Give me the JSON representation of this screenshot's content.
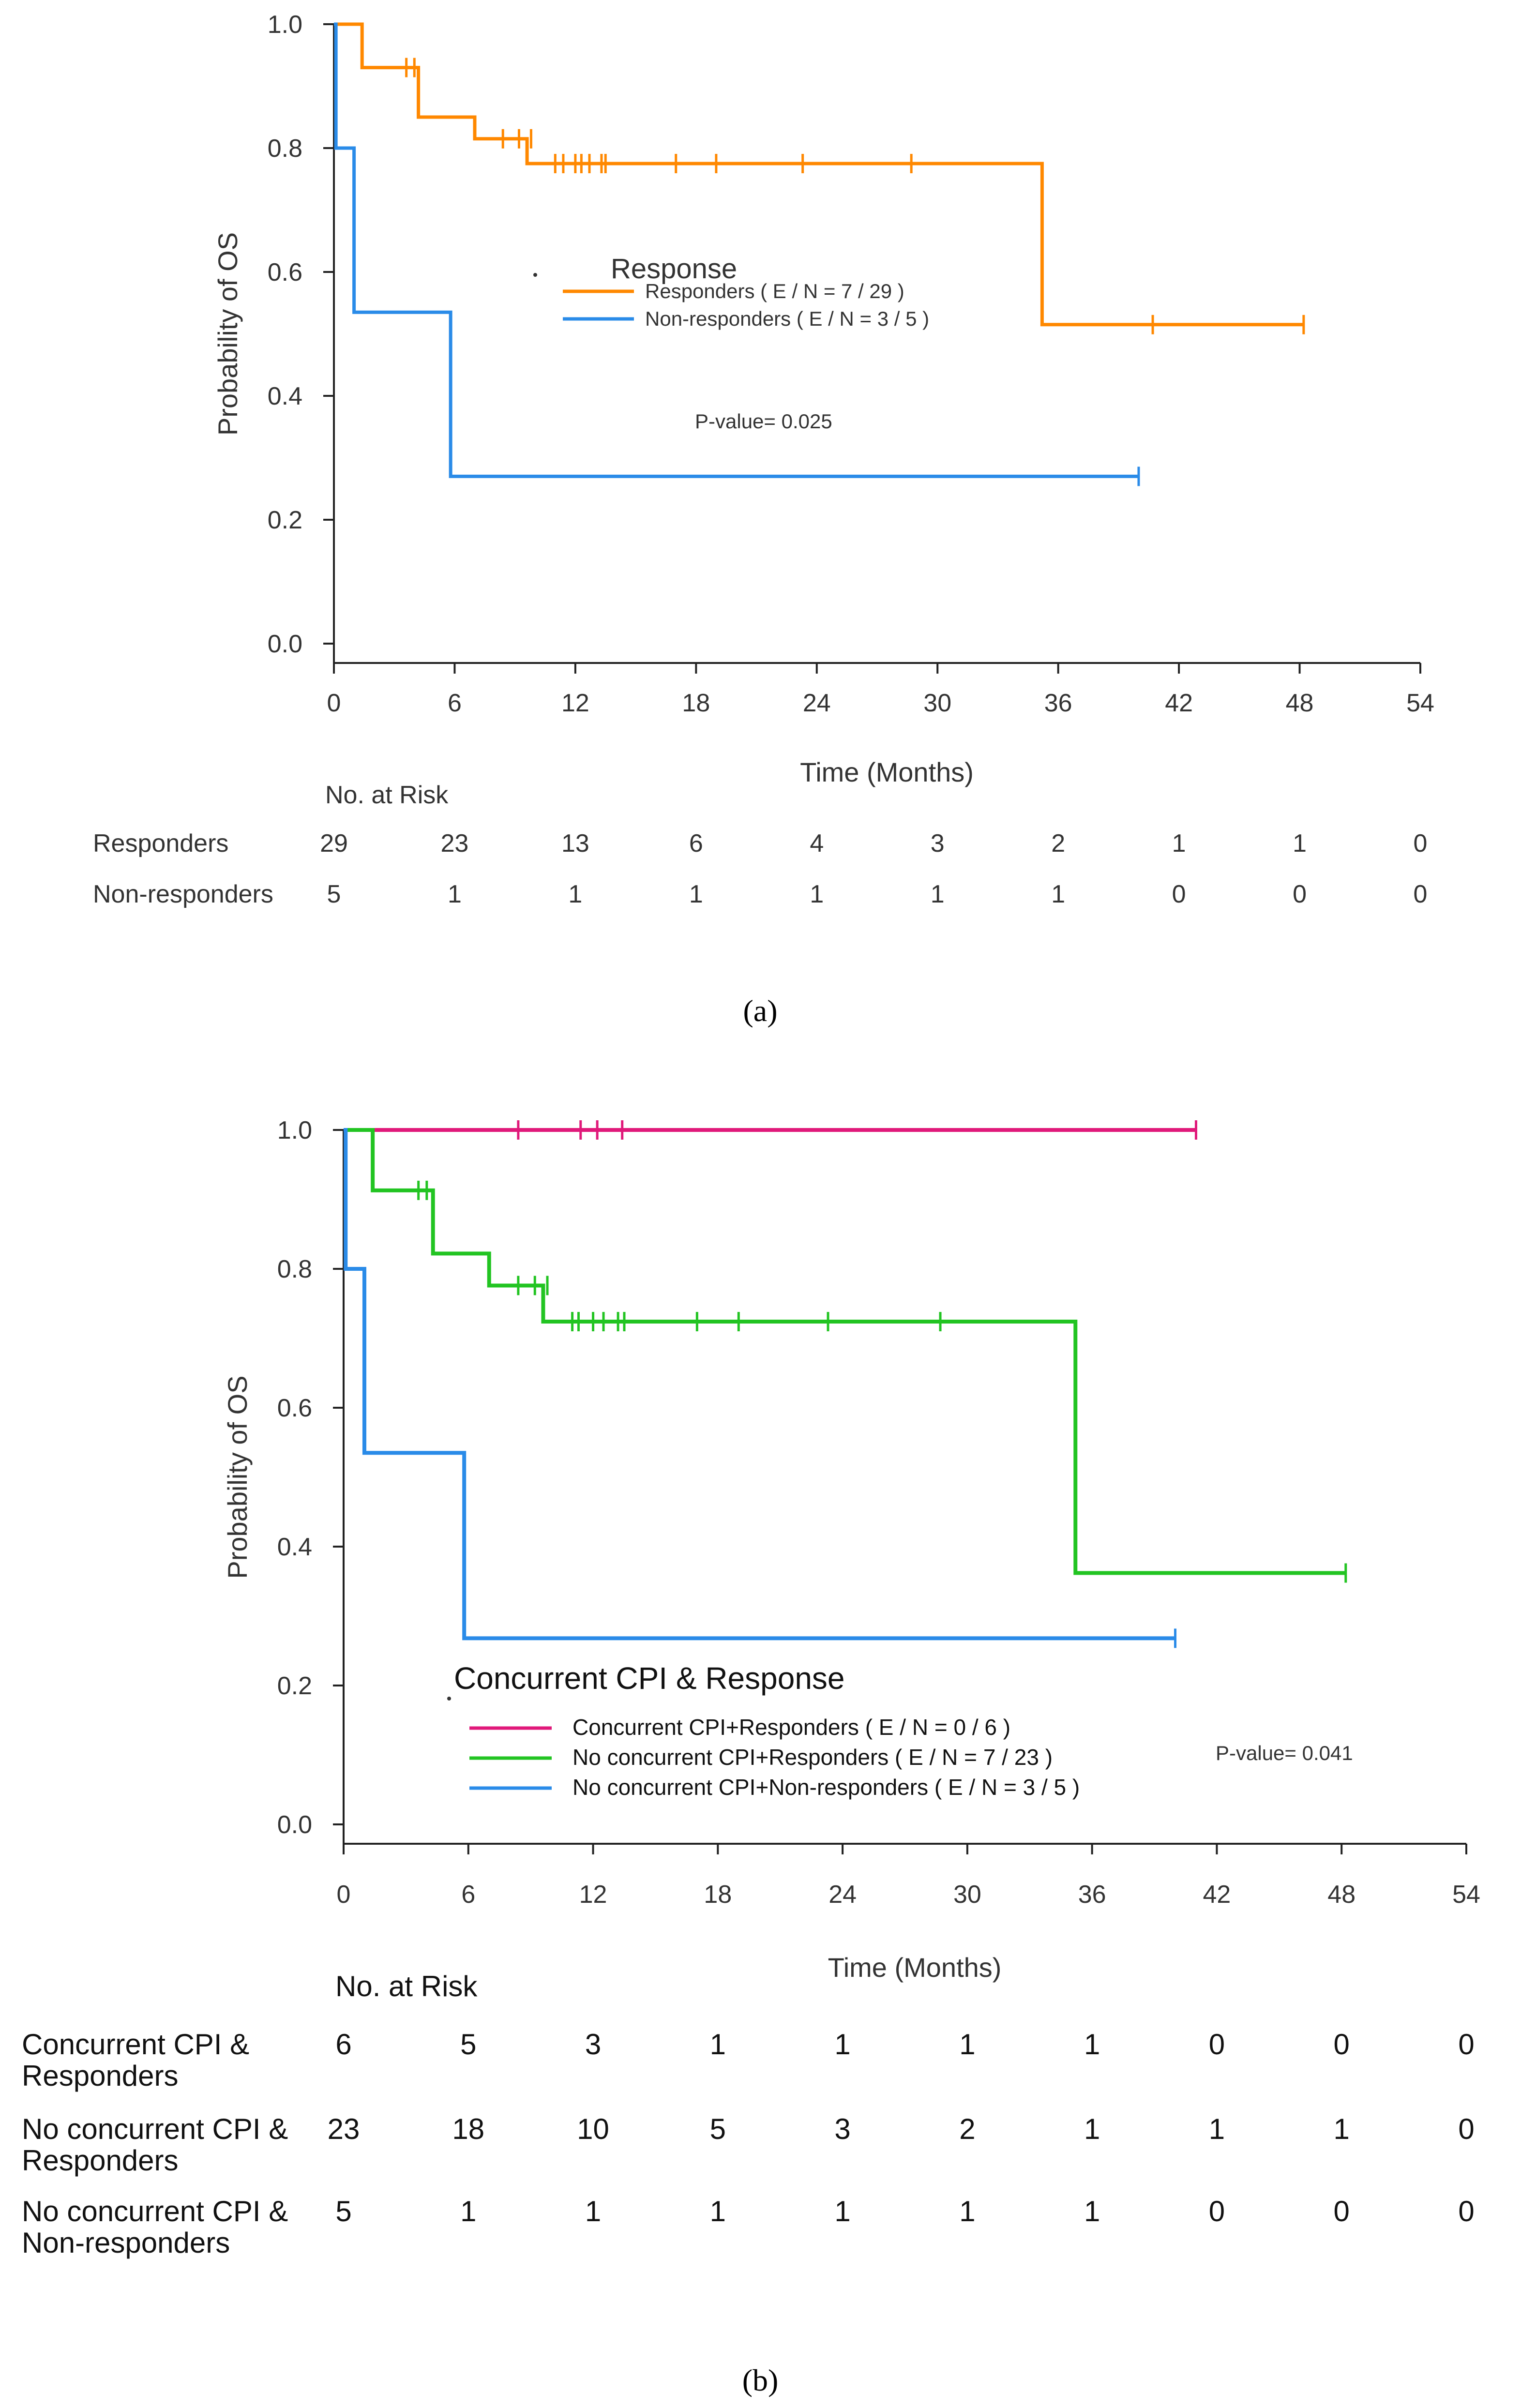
{
  "chart_data": [
    {
      "type": "line",
      "panel_label": "a",
      "caption": "(a)",
      "ylabel": "Probability of OS",
      "xlabel": "Time (Months)",
      "xlim": [
        0,
        54
      ],
      "ylim": [
        0,
        1
      ],
      "x_ticks": [
        "0",
        "6",
        "12",
        "18",
        "24",
        "30",
        "36",
        "42",
        "48",
        "54"
      ],
      "y_ticks": [
        "0.0",
        "0.2",
        "0.4",
        "0.6",
        "0.8",
        "1.0"
      ],
      "legend_title": "Response",
      "legend_marker": ".",
      "p_value": "P-value= 0.025",
      "series": [
        {
          "name": "Responders",
          "legend_label": "Responders ( E / N = 7 / 29 )",
          "color": "#ff8800",
          "steps": [
            [
              0,
              1.0
            ],
            [
              1.4,
              0.93
            ],
            [
              4.2,
              0.85
            ],
            [
              7.0,
              0.815
            ],
            [
              9.6,
              0.775
            ],
            [
              35.2,
              0.515
            ],
            [
              48.2,
              0.515
            ]
          ],
          "censored": [
            [
              3.6,
              0.93
            ],
            [
              4.0,
              0.93
            ],
            [
              8.4,
              0.815
            ],
            [
              9.2,
              0.815
            ],
            [
              9.8,
              0.815
            ],
            [
              11.0,
              0.775
            ],
            [
              11.4,
              0.775
            ],
            [
              12.0,
              0.775
            ],
            [
              12.3,
              0.775
            ],
            [
              12.7,
              0.775
            ],
            [
              13.3,
              0.775
            ],
            [
              13.5,
              0.775
            ],
            [
              17.0,
              0.775
            ],
            [
              19.0,
              0.775
            ],
            [
              23.3,
              0.775
            ],
            [
              28.7,
              0.775
            ],
            [
              40.7,
              0.515
            ],
            [
              48.2,
              0.515
            ]
          ]
        },
        {
          "name": "Non-responders",
          "legend_label": "Non-responders ( E / N = 3 / 5 )",
          "color": "#2a8be8",
          "steps": [
            [
              0,
              1.0
            ],
            [
              0.1,
              0.8
            ],
            [
              1.0,
              0.535
            ],
            [
              5.8,
              0.27
            ],
            [
              40.0,
              0.27
            ]
          ],
          "censored": [
            [
              40.0,
              0.27
            ]
          ]
        }
      ],
      "risk_table": {
        "title": "No. at Risk",
        "rows": [
          {
            "label": "Responders",
            "values": [
              "29",
              "23",
              "13",
              "6",
              "4",
              "3",
              "2",
              "1",
              "1",
              "0"
            ]
          },
          {
            "label": "Non-responders",
            "values": [
              "5",
              "1",
              "1",
              "1",
              "1",
              "1",
              "1",
              "0",
              "0",
              "0"
            ]
          }
        ]
      }
    },
    {
      "type": "line",
      "panel_label": "b",
      "caption": "(b)",
      "ylabel": "Probability of OS",
      "xlabel": "Time (Months)",
      "xlim": [
        0,
        54
      ],
      "ylim": [
        0,
        1
      ],
      "x_ticks": [
        "0",
        "6",
        "12",
        "18",
        "24",
        "30",
        "36",
        "42",
        "48",
        "54"
      ],
      "y_ticks": [
        "0.0",
        "0.2",
        "0.4",
        "0.6",
        "0.8",
        "1.0"
      ],
      "legend_title": "Concurrent CPI & Response",
      "legend_marker": ".",
      "p_value": "P-value= 0.041",
      "series": [
        {
          "name": "Concurrent CPI+Responders",
          "legend_label": "Concurrent CPI+Responders ( E / N = 0 / 6 )",
          "color": "#e0197a",
          "steps": [
            [
              0,
              1.0
            ],
            [
              41.0,
              1.0
            ]
          ],
          "censored": [
            [
              8.4,
              1.0
            ],
            [
              11.4,
              1.0
            ],
            [
              12.2,
              1.0
            ],
            [
              13.4,
              1.0
            ],
            [
              41.0,
              1.0
            ]
          ]
        },
        {
          "name": "No concurrent CPI+Responders",
          "legend_label": "No concurrent CPI+Responders ( E / N = 7 / 23 )",
          "color": "#22c422",
          "steps": [
            [
              0,
              1.0
            ],
            [
              1.4,
              0.913
            ],
            [
              4.3,
              0.822
            ],
            [
              7.0,
              0.776
            ],
            [
              9.6,
              0.724
            ],
            [
              35.2,
              0.362
            ],
            [
              48.2,
              0.362
            ]
          ],
          "censored": [
            [
              3.6,
              0.913
            ],
            [
              4.0,
              0.913
            ],
            [
              8.4,
              0.776
            ],
            [
              9.2,
              0.776
            ],
            [
              9.8,
              0.776
            ],
            [
              11.0,
              0.724
            ],
            [
              11.3,
              0.724
            ],
            [
              12.0,
              0.724
            ],
            [
              12.5,
              0.724
            ],
            [
              13.2,
              0.724
            ],
            [
              13.5,
              0.724
            ],
            [
              17.0,
              0.724
            ],
            [
              19.0,
              0.724
            ],
            [
              23.3,
              0.724
            ],
            [
              28.7,
              0.724
            ],
            [
              48.2,
              0.362
            ]
          ]
        },
        {
          "name": "No concurrent CPI+Non-responders",
          "legend_label": "No concurrent CPI+Non-responders ( E / N = 3 / 5 )",
          "color": "#2a8be8",
          "steps": [
            [
              0,
              1.0
            ],
            [
              0.1,
              0.8
            ],
            [
              1.0,
              0.535
            ],
            [
              5.8,
              0.268
            ],
            [
              40.0,
              0.268
            ]
          ],
          "censored": [
            [
              40.0,
              0.268
            ]
          ]
        }
      ],
      "risk_table": {
        "title": "No. at Risk",
        "rows": [
          {
            "label_lines": [
              "Concurrent CPI &",
              "Responders"
            ],
            "values": [
              "6",
              "5",
              "3",
              "1",
              "1",
              "1",
              "1",
              "0",
              "0",
              "0"
            ]
          },
          {
            "label_lines": [
              "No concurrent CPI &",
              "Responders"
            ],
            "values": [
              "23",
              "18",
              "10",
              "5",
              "3",
              "2",
              "1",
              "1",
              "1",
              "0"
            ]
          },
          {
            "label_lines": [
              "No concurrent CPI &",
              "Non-responders"
            ],
            "values": [
              "5",
              "1",
              "1",
              "1",
              "1",
              "1",
              "1",
              "0",
              "0",
              "0"
            ]
          }
        ]
      }
    }
  ]
}
